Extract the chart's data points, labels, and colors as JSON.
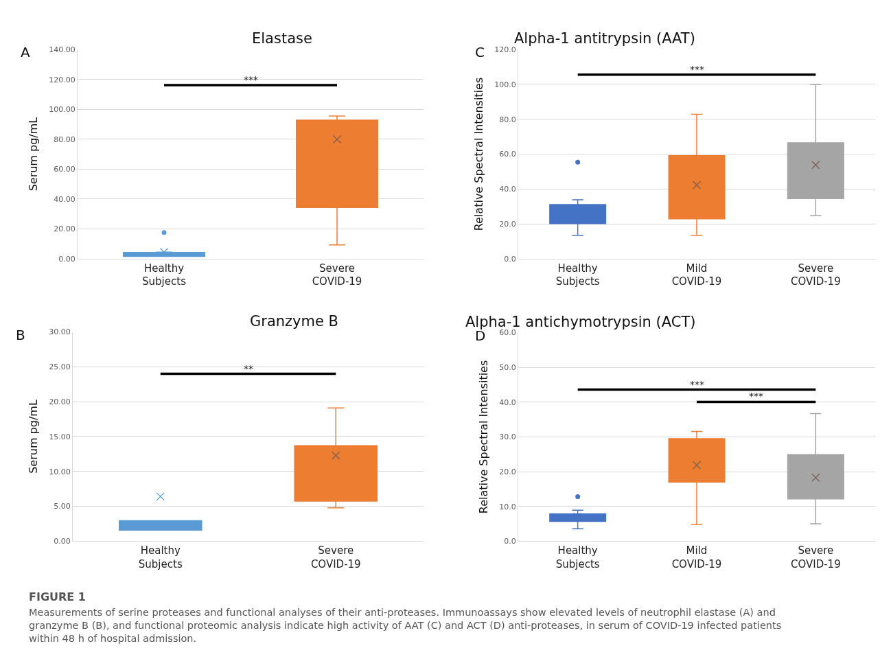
{
  "chart_data": [
    {
      "type": "box",
      "subtitle": "A",
      "title": "Elastase",
      "ylabel": "Serum pg/mL",
      "categories": [
        "Healthy Subjects",
        "Severe COVID-19"
      ],
      "colors": [
        "#5b9bd5",
        "#ed7d31"
      ],
      "boxes": [
        {
          "low": 1.6,
          "q1": 1.6,
          "median": 3.0,
          "q3": 4.3,
          "high": 4.5,
          "mean": 4.5,
          "outliers": [
            17.6
          ]
        },
        {
          "low": 9.3,
          "q1": 34.3,
          "median": 72.2,
          "q3": 92.8,
          "high": 95.5,
          "mean": 79.9
        }
      ],
      "ylim": [
        0,
        140
      ],
      "yticks": [
        {
          "value": 0,
          "label": "0.00"
        },
        {
          "value": 20,
          "label": "20.00"
        },
        {
          "value": 40,
          "label": "40.00"
        },
        {
          "value": 60,
          "label": "60.00"
        },
        {
          "value": 80,
          "label": "80.00"
        },
        {
          "value": 100,
          "label": "100.00"
        },
        {
          "value": 120,
          "label": "120.00"
        },
        {
          "value": 140,
          "label": "140.00"
        }
      ],
      "grid": "y",
      "annotations": [
        "***"
      ]
    },
    {
      "type": "box",
      "subtitle": "C",
      "title": "Alpha-1 antitrypsin (AAT)",
      "ylabel": "Relative Spectral Intensities",
      "categories": [
        "Healthy Subjects",
        "Mild COVID-19",
        "Severe COVID-19"
      ],
      "colors": [
        "#4472c4",
        "#ed7d31",
        "#a5a5a5"
      ],
      "boxes": [
        {
          "low": 13.5,
          "q1": 20.2,
          "median": 25.7,
          "q3": 31.1,
          "high": 33.8,
          "mean": 26.9,
          "outliers": [
            55.4
          ]
        },
        {
          "low": 13.5,
          "q1": 22.9,
          "median": 43.8,
          "q3": 59.1,
          "high": 82.8,
          "mean": 42.3
        },
        {
          "low": 24.8,
          "q1": 34.5,
          "median": 57.7,
          "q3": 66.5,
          "high": 100,
          "mean": 53.8
        }
      ],
      "ylim": [
        0,
        120
      ],
      "yticks": [
        {
          "value": 0,
          "label": "0.0"
        },
        {
          "value": 20,
          "label": "20.0"
        },
        {
          "value": 40,
          "label": "40.0"
        },
        {
          "value": 60,
          "label": "60.0"
        },
        {
          "value": 80,
          "label": "80.0"
        },
        {
          "value": 100,
          "label": "100.0"
        },
        {
          "value": 120,
          "label": "120.0"
        }
      ],
      "grid": "y",
      "annotations": [
        "***"
      ]
    },
    {
      "type": "box",
      "subtitle": "B",
      "title": "Granzyme B",
      "ylabel": "Serum pg/mL",
      "categories": [
        "Healthy Subjects",
        "Severe COVID-19"
      ],
      "colors": [
        "#5b9bd5",
        "#ed7d31"
      ],
      "boxes": [
        {
          "low": 1.6,
          "q1": 1.6,
          "median": 2.4,
          "q3": 2.95,
          "high": 2.95,
          "mean": 6.4
        },
        {
          "low": 4.8,
          "q1": 5.75,
          "median": 8.05,
          "q3": 13.7,
          "high": 19.1,
          "mean": 12.3
        }
      ],
      "ylim": [
        0,
        30
      ],
      "yticks": [
        {
          "value": 0,
          "label": "0.00"
        },
        {
          "value": 5,
          "label": "5.00"
        },
        {
          "value": 10,
          "label": "10.00"
        },
        {
          "value": 15,
          "label": "15.00"
        },
        {
          "value": 20,
          "label": "20.00"
        },
        {
          "value": 25,
          "label": "25.00"
        },
        {
          "value": 30,
          "label": "30.00"
        }
      ],
      "grid": "y",
      "annotations": [
        "**"
      ]
    },
    {
      "type": "box",
      "subtitle": "D",
      "title": "Alpha-1 antichymotrypsin (ACT)",
      "ylabel": "Relative Spectral Intensities",
      "categories": [
        "Healthy Subjects",
        "Mild COVID-19",
        "Severe COVID-19"
      ],
      "colors": [
        "#4472c4",
        "#ed7d31",
        "#a5a5a5"
      ],
      "boxes": [
        {
          "low": 3.6,
          "q1": 5.7,
          "median": 7.4,
          "q3": 7.9,
          "high": 8.9,
          "mean": 7.0,
          "outliers": [
            12.8
          ]
        },
        {
          "low": 4.8,
          "q1": 17.0,
          "median": 22.8,
          "q3": 29.5,
          "high": 31.6,
          "mean": 21.9
        },
        {
          "low": 5.0,
          "q1": 12.2,
          "median": 15.7,
          "q3": 24.9,
          "high": 36.7,
          "mean": 18.3
        }
      ],
      "ylim": [
        0,
        60
      ],
      "yticks": [
        {
          "value": 0,
          "label": "0.0"
        },
        {
          "value": 10,
          "label": "10.0"
        },
        {
          "value": 20,
          "label": "20.0"
        },
        {
          "value": 30,
          "label": "30.0"
        },
        {
          "value": 40,
          "label": "40.0"
        },
        {
          "value": 50,
          "label": "50.0"
        },
        {
          "value": 60,
          "label": "60.0"
        }
      ],
      "grid": "y",
      "annotations": [
        "***",
        "***"
      ]
    },
    {
      "type": "other",
      "title": "FIGURE 1",
      "annotations": [
        "Measurements of serine proteases and functional analyses of their anti-proteases. Immunoassays show elevated levels of neutrophil elastase (A) and granzyme B (B), and functional proteomic analysis indicate high activity of AAT (C) and ACT (D) anti-proteases, in serum of COVID-19 infected patients within 48 h of hospital admission."
      ]
    }
  ]
}
